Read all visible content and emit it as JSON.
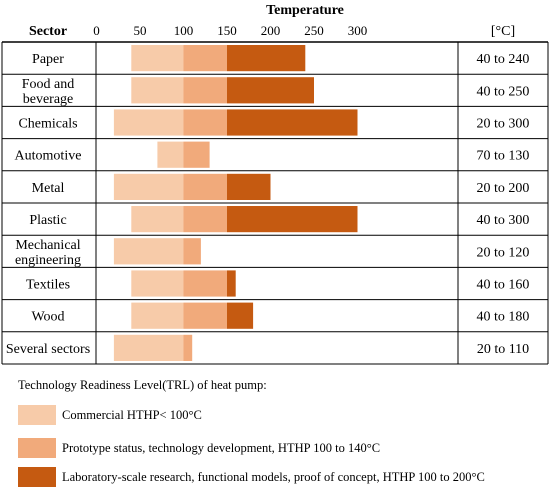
{
  "chart_data": {
    "type": "bar",
    "title": "Temperature",
    "sector_header": "Sector",
    "unit_header": "[°C]",
    "x_ticks": [
      0,
      50,
      100,
      150,
      200,
      250,
      300
    ],
    "xlim": [
      0,
      300
    ],
    "categories": [
      "Paper",
      "Food and beverage",
      "Chemicals",
      "Automotive",
      "Metal",
      "Plastic",
      "Mechanical engineering",
      "Textiles",
      "Wood",
      "Several sectors"
    ],
    "category_display": [
      [
        "Paper"
      ],
      [
        "Food and",
        "beverage"
      ],
      [
        "Chemicals"
      ],
      [
        "Automotive"
      ],
      [
        "Metal"
      ],
      [
        "Plastic"
      ],
      [
        "Mechanical",
        "engineering"
      ],
      [
        "Textiles"
      ],
      [
        "Wood"
      ],
      [
        "Several sectors"
      ]
    ],
    "ranges": [
      "40 to 240",
      "40 to 250",
      "20 to 300",
      "70 to 130",
      "20 to 200",
      "40 to 300",
      "20 to 120",
      "40 to 160",
      "40 to 180",
      "20 to 110"
    ],
    "low": [
      40,
      40,
      20,
      70,
      20,
      40,
      20,
      40,
      40,
      20
    ],
    "high": [
      240,
      250,
      300,
      130,
      200,
      300,
      120,
      160,
      180,
      110
    ],
    "series_thresholds": [
      100,
      150
    ],
    "series": [
      {
        "name": "Commercial HTHP< 100°C",
        "color": "#f7cba9"
      },
      {
        "name": "Prototype status, technology  development, HTHP 100 to 140°C",
        "color": "#f1aa7b"
      },
      {
        "name": "Laboratory-scale research, functional models, proof of concept, HTHP 100 to 200°C",
        "color": "#c55a11"
      }
    ],
    "grid": false,
    "legend_position": "bottom-left"
  },
  "legend": {
    "title": "Technology Readiness Level(TRL) of heat pump:"
  }
}
